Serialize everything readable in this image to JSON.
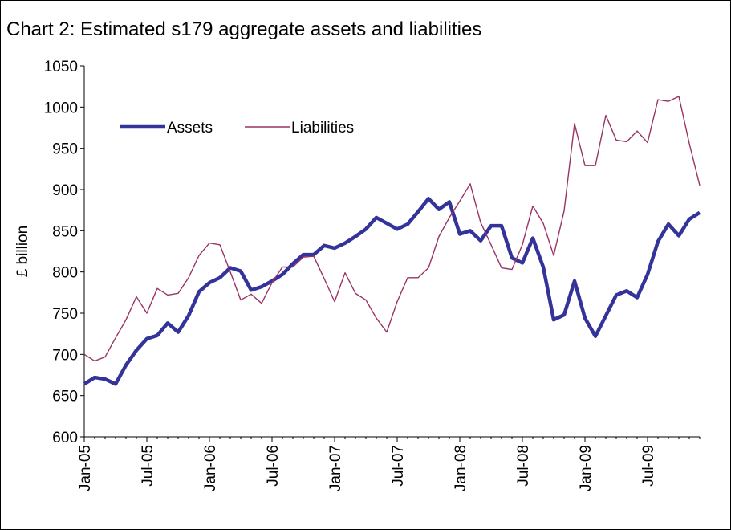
{
  "chart_data": {
    "type": "line",
    "title": "Chart 2: Estimated s179 aggregate assets and liabilities",
    "y_label": "£ billion",
    "categories": [
      "Jan-05",
      null,
      null,
      null,
      null,
      null,
      "Jul-05",
      null,
      null,
      null,
      null,
      null,
      "Jan-06",
      null,
      null,
      null,
      null,
      null,
      "Jul-06",
      null,
      null,
      null,
      null,
      null,
      "Jan-07",
      null,
      null,
      null,
      null,
      null,
      "Jul-07",
      null,
      null,
      null,
      null,
      null,
      "Jan-08",
      null,
      null,
      null,
      null,
      null,
      "Jul-08",
      null,
      null,
      null,
      null,
      null,
      "Jan-09",
      null,
      null,
      null,
      null,
      null,
      "Jul-09",
      null,
      null,
      null,
      null,
      null
    ],
    "series": [
      {
        "name": "Assets",
        "color": "#333399",
        "values": [
          664,
          672,
          670,
          664,
          687,
          705,
          719,
          723,
          738,
          727,
          747,
          776,
          787,
          793,
          805,
          801,
          778,
          782,
          789,
          797,
          810,
          821,
          821,
          832,
          829,
          835,
          843,
          852,
          866,
          859,
          852,
          858,
          873,
          889,
          876,
          885,
          846,
          850,
          838,
          856,
          856,
          817,
          811,
          841,
          806,
          742,
          748,
          789,
          744,
          722,
          747,
          772,
          777,
          769,
          797,
          837,
          858,
          844,
          864,
          872
        ]
      },
      {
        "name": "Liabilities",
        "color": "#993366",
        "values": [
          700,
          692,
          697,
          720,
          742,
          770,
          750,
          780,
          772,
          774,
          793,
          820,
          835,
          833,
          800,
          766,
          773,
          762,
          787,
          806,
          806,
          818,
          819,
          792,
          764,
          799,
          774,
          766,
          744,
          727,
          764,
          793,
          793,
          805,
          843,
          866,
          886,
          907,
          860,
          833,
          805,
          803,
          833,
          880,
          859,
          820,
          874,
          980,
          929,
          929,
          990,
          960,
          958,
          971,
          957,
          1009,
          1007,
          1013,
          956,
          905
        ]
      }
    ],
    "ylim": [
      600,
      1050
    ],
    "yticks": [
      600,
      650,
      700,
      750,
      800,
      850,
      900,
      950,
      1000,
      1050
    ],
    "grid": false,
    "legend": "upper left"
  }
}
